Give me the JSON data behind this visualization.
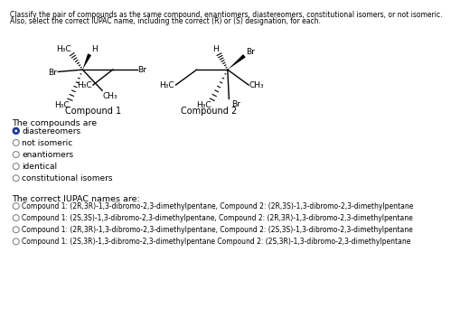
{
  "title_line1": "Classify the pair of compounds as the same compound, enantiomers, diastereomers, constitutional isomers, or not isomeric.",
  "title_line2": "Also, select the correct IUPAC name, including the correct (R) or (S) designation, for each.",
  "compounds_label": "The compounds are",
  "radio_options": [
    {
      "text": "diastereomers",
      "selected": true
    },
    {
      "text": "not isomeric",
      "selected": false
    },
    {
      "text": "enantiomers",
      "selected": false
    },
    {
      "text": "identical",
      "selected": false
    },
    {
      "text": "constitutional isomers",
      "selected": false
    }
  ],
  "iupac_label": "The correct IUPAC names are:",
  "iupac_options": [
    {
      "text": "Compound 1: (2R,3R)-1,3-dibromo-2,3-dimethylpentane, Compound 2: (2R,3S)-1,3-dibromo-2,3-dimethylpentane",
      "selected": false
    },
    {
      "text": "Compound 1: (2S,3S)-1,3-dibromo-2,3-dimethylpentane, Compound 2: (2R,3R)-1,3-dibromo-2,3-dimethylpentane",
      "selected": false
    },
    {
      "text": "Compound 1: (2R,3R)-1,3-dibromo-2,3-dimethylpentane, Compound 2: (2S,3S)-1,3-dibromo-2,3-dimethylpentane",
      "selected": false
    },
    {
      "text": "Compound 1: (2S,3R)-1,3-dibromo-2,3-dimethylpentane Compound 2: (2S,3R)-1,3-dibromo-2,3-dimethylpentane",
      "selected": false
    }
  ],
  "bg_color": "#ffffff",
  "text_color": "#000000",
  "selected_fill": "#1a3a8f",
  "font_size_title": 5.5,
  "font_size_body": 6.5,
  "font_size_label": 6.8,
  "font_size_radio": 6.5,
  "font_size_iupac": 5.5
}
